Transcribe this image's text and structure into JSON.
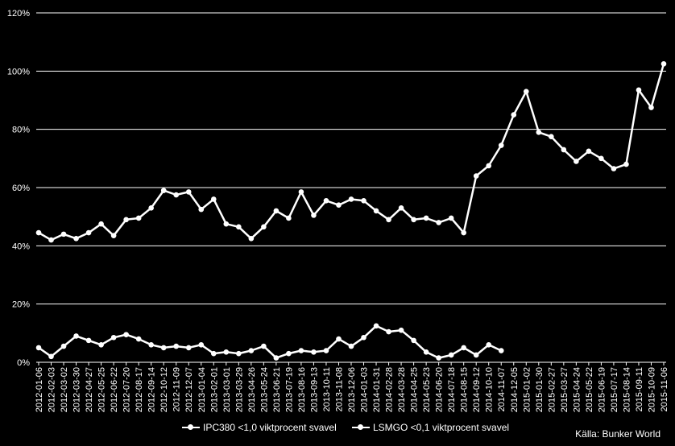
{
  "chart_data": {
    "type": "line",
    "yticks": [
      "0%",
      "20%",
      "40%",
      "60%",
      "80%",
      "100%",
      "120%"
    ],
    "ylim": [
      0,
      120
    ],
    "grid": true,
    "legend_position": "bottom",
    "x": [
      "2012-01-06",
      "2012-02-03",
      "2012-03-02",
      "2012-03-30",
      "2012-04-27",
      "2012-05-25",
      "2012-06-22",
      "2012-07-20",
      "2012-08-17",
      "2012-09-14",
      "2012-10-12",
      "2012-11-09",
      "2012-12-07",
      "2013-01-04",
      "2013-02-01",
      "2013-03-01",
      "2013-03-29",
      "2013-04-26",
      "2013-05-24",
      "2013-06-21",
      "2013-07-19",
      "2013-08-16",
      "2013-09-13",
      "2013-10-11",
      "2013-11-08",
      "2013-12-06",
      "2014-01-03",
      "2014-01-31",
      "2014-02-28",
      "2014-03-28",
      "2014-04-25",
      "2014-05-23",
      "2014-06-20",
      "2014-07-18",
      "2014-08-15",
      "2014-09-12",
      "2014-10-10",
      "2014-11-07",
      "2014-12-05",
      "2015-01-02",
      "2015-01-30",
      "2015-02-27",
      "2015-03-27",
      "2015-04-24",
      "2015-05-22",
      "2015-06-19",
      "2015-07-17",
      "2015-08-14",
      "2015-09-11",
      "2015-10-09",
      "2015-11-06"
    ],
    "xticks": [
      "2012-01-06",
      "2012-02-03",
      "2012-03-02",
      "2012-03-30",
      "2012-04-27",
      "2012-05-25",
      "2012-06-22",
      "2012-07-20",
      "2012-08-17",
      "2012-09-14",
      "2012-10-12",
      "2012-11-09",
      "2012-12-07",
      "2013-01-04",
      "2013-02-01",
      "2013-03-01",
      "2013-03-29",
      "2013-04-26",
      "2013-05-24",
      "2013-06-21",
      "2013-07-19",
      "2013-08-16",
      "2013-09-13",
      "2013-10-11",
      "2013-11-08",
      "2013-12-06",
      "2014-01-03",
      "2014-01-31",
      "2014-02-28",
      "2014-03-28",
      "2014-04-25",
      "2014-05-23",
      "2014-06-20",
      "2014-07-18",
      "2014-08-15",
      "2014-09-12",
      "2014-10-10",
      "2014-11-07",
      "2014-12-05",
      "2015-01-02",
      "2015-01-30",
      "2015-02-27",
      "2015-03-27",
      "2015-04-24",
      "2015-05-22",
      "2015-06-19",
      "2015-07-17",
      "2015-08-14",
      "2015-09-11",
      "2015-10-09",
      "2015-11-06"
    ],
    "series": [
      {
        "name": "IPC380 <1,0 viktprocent svavel",
        "values": [
          44.5,
          42.0,
          44.0,
          42.5,
          44.5,
          47.5,
          43.5,
          49.0,
          49.5,
          53.0,
          59.0,
          57.5,
          58.5,
          52.5,
          56.0,
          47.5,
          46.5,
          42.5,
          46.5,
          52.0,
          49.5,
          58.5,
          50.5,
          55.5,
          54.0,
          56.0,
          55.5,
          52.0,
          49.0,
          53.0,
          49.0,
          49.5,
          48.0,
          49.5,
          44.5,
          64.0,
          67.5,
          74.5,
          85.0,
          93.0,
          79.0,
          77.5,
          73.0,
          69.0,
          72.5,
          70.0,
          66.5,
          68.0,
          93.5,
          87.5,
          102.5
        ]
      },
      {
        "name": "LSMGO <0,1 viktprocent svavel",
        "values": [
          5.0,
          2.0,
          5.5,
          9.0,
          7.5,
          6.0,
          8.5,
          9.5,
          8.0,
          6.0,
          5.0,
          5.5,
          5.0,
          6.0,
          3.0,
          3.5,
          3.0,
          4.0,
          5.5,
          1.5,
          3.0,
          4.0,
          3.5,
          4.0,
          8.0,
          5.5,
          8.5,
          12.5,
          10.5,
          11.0,
          7.5,
          3.5,
          1.5,
          2.5,
          5.0,
          2.5,
          6.0,
          4.0,
          null,
          null,
          null,
          null,
          null,
          null,
          null,
          null,
          null,
          null,
          null,
          null,
          null
        ]
      }
    ]
  },
  "legend": {
    "item1": "IPC380 <1,0 viktprocent svavel",
    "item2": "LSMGO <0,1 viktprocent svavel"
  },
  "source": "Källa: Bunker World",
  "colors": {
    "background": "#000000",
    "line": "#ffffff",
    "grid": "#ffffff"
  }
}
